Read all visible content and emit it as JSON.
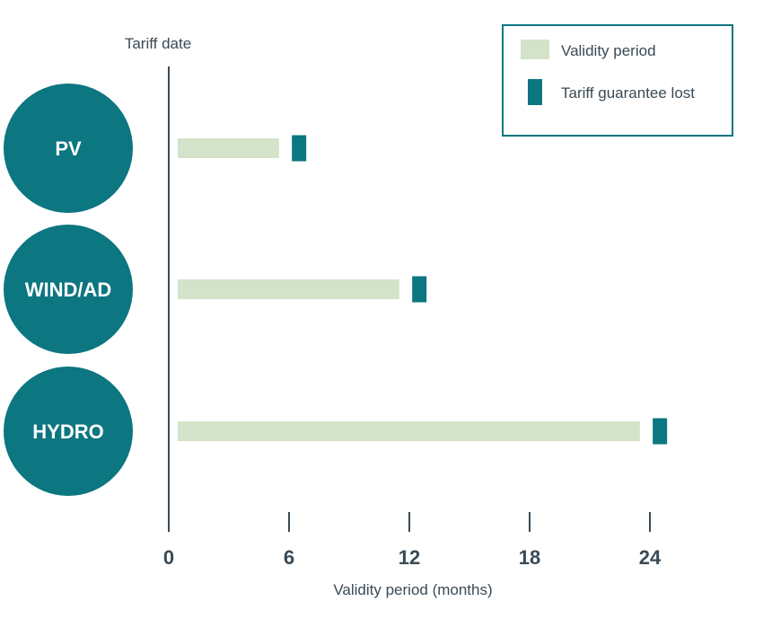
{
  "chart_data": {
    "type": "bar",
    "categories": [
      "PV",
      "WIND/AD",
      "HYDRO"
    ],
    "series": [
      {
        "name": "Validity period",
        "values": [
          5.5,
          11.5,
          23.5
        ]
      },
      {
        "name": "Tariff guarantee lost",
        "values": [
          6.5,
          12.5,
          24.5
        ]
      }
    ],
    "xlabel": "Validity period (months)",
    "baseline_label": "Tariff date",
    "xticks": [
      0,
      6,
      12,
      18,
      24
    ],
    "xlim": [
      0,
      24
    ],
    "colors": {
      "validity": "#d3e3ca",
      "lost": "#0c7681",
      "circle": "#0c7681",
      "axis": "#3a4a55",
      "text": "#3a4a55"
    }
  }
}
